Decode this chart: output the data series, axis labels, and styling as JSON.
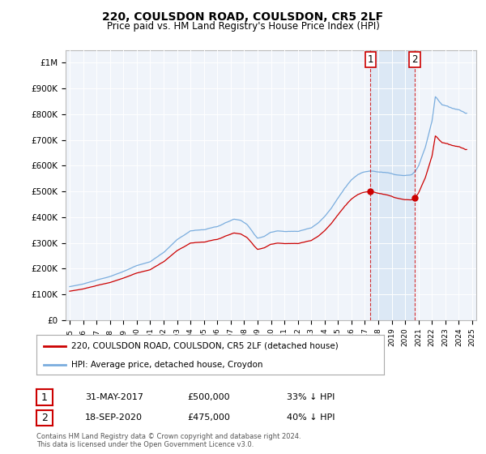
{
  "title": "220, COULSDON ROAD, COULSDON, CR5 2LF",
  "subtitle": "Price paid vs. HM Land Registry's House Price Index (HPI)",
  "background_color": "#ffffff",
  "plot_bg_color": "#f0f4fa",
  "hpi_color": "#7aadde",
  "price_color": "#cc0000",
  "shade_color": "#dce8f5",
  "ylim": [
    0,
    1050000
  ],
  "yticks": [
    0,
    100000,
    200000,
    300000,
    400000,
    500000,
    600000,
    700000,
    800000,
    900000,
    1000000
  ],
  "ytick_labels": [
    "£0",
    "£100K",
    "£200K",
    "£300K",
    "£400K",
    "£500K",
    "£600K",
    "£700K",
    "£800K",
    "£900K",
    "£1M"
  ],
  "legend_label_price": "220, COULSDON ROAD, COULSDON, CR5 2LF (detached house)",
  "legend_label_hpi": "HPI: Average price, detached house, Croydon",
  "annotation1": {
    "num": "1",
    "date": "31-MAY-2017",
    "price": "£500,000",
    "pct": "33% ↓ HPI"
  },
  "annotation2": {
    "num": "2",
    "date": "18-SEP-2020",
    "price": "£475,000",
    "pct": "40% ↓ HPI"
  },
  "footnote": "Contains HM Land Registry data © Crown copyright and database right 2024.\nThis data is licensed under the Open Government Licence v3.0.",
  "sale1_year": 2017.42,
  "sale1_price": 500000,
  "sale2_year": 2020.72,
  "sale2_price": 475000,
  "xtick_years": [
    1995,
    1996,
    1997,
    1998,
    1999,
    2000,
    2001,
    2002,
    2003,
    2004,
    2005,
    2006,
    2007,
    2008,
    2009,
    2010,
    2011,
    2012,
    2013,
    2014,
    2015,
    2016,
    2017,
    2018,
    2019,
    2020,
    2021,
    2022,
    2023,
    2024,
    2025
  ]
}
